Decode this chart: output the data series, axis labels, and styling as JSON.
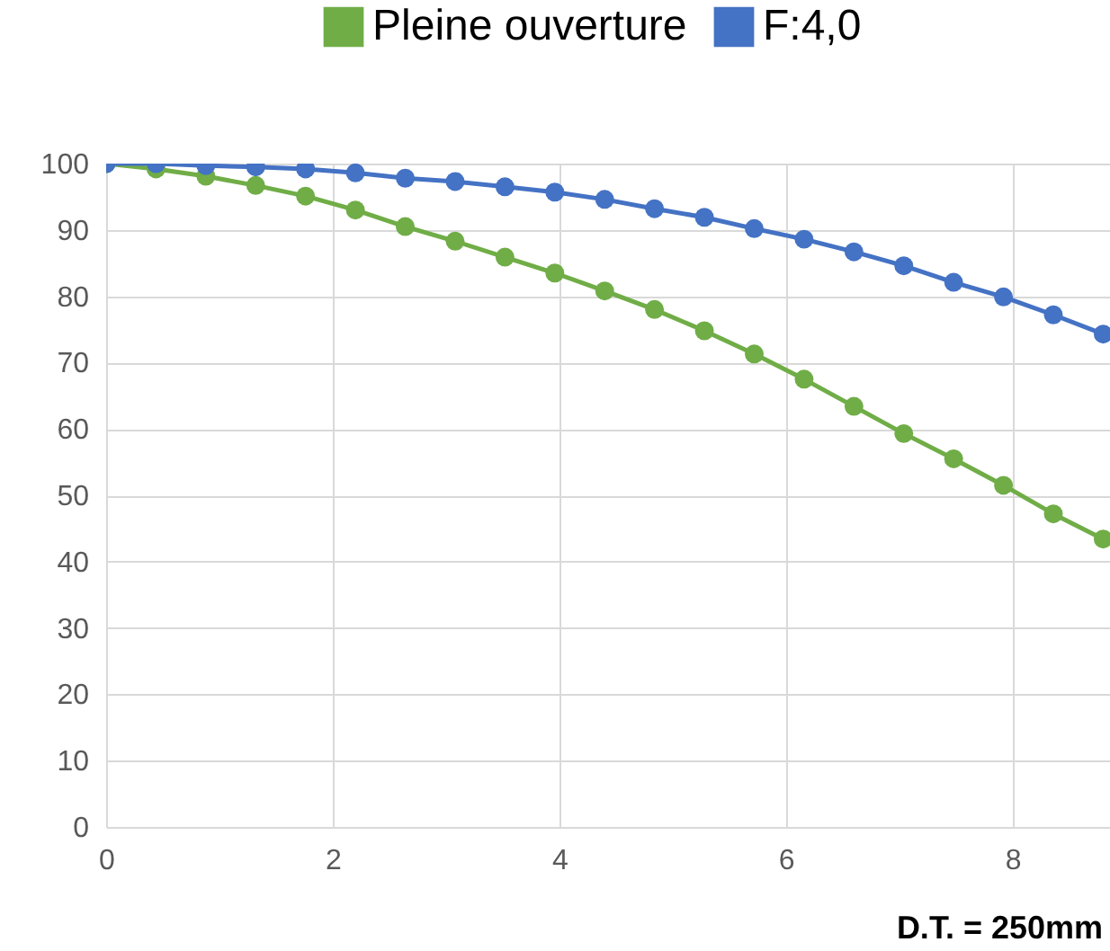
{
  "chart_data": {
    "type": "line",
    "x": [
      0,
      0.44,
      0.88,
      1.32,
      1.76,
      2.2,
      2.64,
      3.08,
      3.52,
      3.96,
      4.4,
      4.84,
      5.28,
      5.72,
      6.16,
      6.6,
      7.04,
      7.48,
      7.92,
      8.36,
      8.8
    ],
    "series": [
      {
        "name": "Pleine ouverture",
        "color": "#70ad47",
        "values": [
          100,
          99.2,
          98.1,
          96.7,
          95.1,
          93.0,
          90.5,
          88.3,
          85.9,
          83.5,
          80.8,
          78.0,
          74.8,
          71.3,
          67.5,
          63.4,
          59.3,
          55.5,
          51.5,
          47.2,
          43.4
        ]
      },
      {
        "name": "F:4,0",
        "color": "#4472c4",
        "values": [
          100,
          100,
          99.7,
          99.5,
          99.2,
          98.6,
          97.8,
          97.3,
          96.5,
          95.7,
          94.6,
          93.2,
          91.9,
          90.2,
          88.6,
          86.7,
          84.6,
          82.1,
          79.9,
          77.2,
          74.3
        ]
      }
    ],
    "xlim": [
      0,
      8.86
    ],
    "xticks": [
      0,
      2,
      4,
      6,
      8
    ],
    "ylim": [
      0,
      100
    ],
    "yticks": [
      0,
      10,
      20,
      30,
      40,
      50,
      60,
      70,
      80,
      90,
      100
    ],
    "grid": true,
    "legend": "top right",
    "marker": "circle",
    "line_style": "solid",
    "annotations": [
      "D.T. = 250mm"
    ]
  }
}
